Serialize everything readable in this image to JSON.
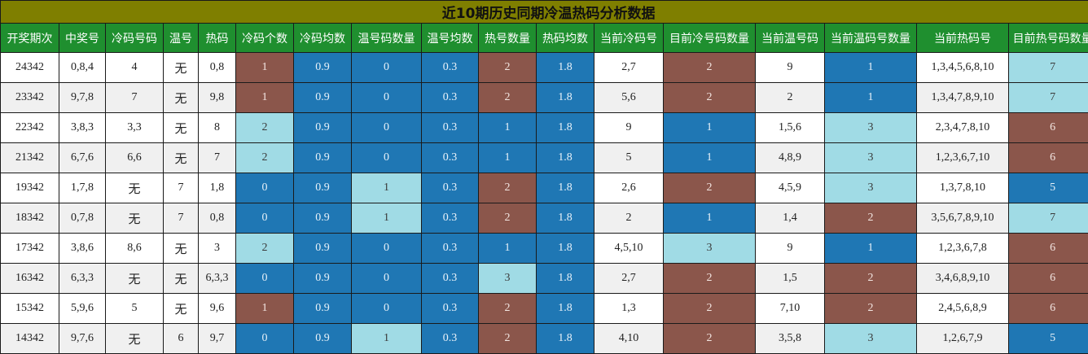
{
  "title": "近10期历史同期冷温热码分析数据",
  "colors": {
    "title_bg": "#7f7f00",
    "header_bg": "#1f8f2f",
    "brown": "#8b564b",
    "blue": "#1f77b4",
    "light": "#a0dbe5"
  },
  "headers": [
    "开奖期次",
    "中奖号",
    "冷码号码",
    "温号",
    "热码",
    "冷码个数",
    "冷码均数",
    "温号码数量",
    "温号均数",
    "热号数量",
    "热码均数",
    "当前冷码号",
    "目前冷号码数量",
    "当前温号码",
    "当前温码号数量",
    "当前热码号",
    "目前热号码数量"
  ],
  "rows": [
    {
      "cells": [
        "24342",
        "0,8,4",
        "4",
        "无",
        "0,8",
        "1",
        "0.9",
        "0",
        "0.3",
        "2",
        "1.8",
        "2,7",
        "2",
        "9",
        "1",
        "1,3,4,5,6,8,10",
        "7"
      ],
      "colors": [
        "",
        "",
        "",
        "",
        "",
        "brown",
        "blue",
        "blue",
        "blue",
        "brown",
        "blue",
        "",
        "brown",
        "",
        "blue",
        "",
        "light"
      ]
    },
    {
      "cells": [
        "23342",
        "9,7,8",
        "7",
        "无",
        "9,8",
        "1",
        "0.9",
        "0",
        "0.3",
        "2",
        "1.8",
        "5,6",
        "2",
        "2",
        "1",
        "1,3,4,7,8,9,10",
        "7"
      ],
      "colors": [
        "",
        "",
        "",
        "",
        "",
        "brown",
        "blue",
        "blue",
        "blue",
        "brown",
        "blue",
        "",
        "brown",
        "",
        "blue",
        "",
        "light"
      ]
    },
    {
      "cells": [
        "22342",
        "3,8,3",
        "3,3",
        "无",
        "8",
        "2",
        "0.9",
        "0",
        "0.3",
        "1",
        "1.8",
        "9",
        "1",
        "1,5,6",
        "3",
        "2,3,4,7,8,10",
        "6"
      ],
      "colors": [
        "",
        "",
        "",
        "",
        "",
        "light",
        "blue",
        "blue",
        "blue",
        "blue",
        "blue",
        "",
        "blue",
        "",
        "light",
        "",
        "brown"
      ]
    },
    {
      "cells": [
        "21342",
        "6,7,6",
        "6,6",
        "无",
        "7",
        "2",
        "0.9",
        "0",
        "0.3",
        "1",
        "1.8",
        "5",
        "1",
        "4,8,9",
        "3",
        "1,2,3,6,7,10",
        "6"
      ],
      "colors": [
        "",
        "",
        "",
        "",
        "",
        "light",
        "blue",
        "blue",
        "blue",
        "blue",
        "blue",
        "",
        "blue",
        "",
        "light",
        "",
        "brown"
      ]
    },
    {
      "cells": [
        "19342",
        "1,7,8",
        "无",
        "7",
        "1,8",
        "0",
        "0.9",
        "1",
        "0.3",
        "2",
        "1.8",
        "2,6",
        "2",
        "4,5,9",
        "3",
        "1,3,7,8,10",
        "5"
      ],
      "colors": [
        "",
        "",
        "",
        "",
        "",
        "blue",
        "blue",
        "light",
        "blue",
        "brown",
        "blue",
        "",
        "brown",
        "",
        "light",
        "",
        "blue"
      ]
    },
    {
      "cells": [
        "18342",
        "0,7,8",
        "无",
        "7",
        "0,8",
        "0",
        "0.9",
        "1",
        "0.3",
        "2",
        "1.8",
        "2",
        "1",
        "1,4",
        "2",
        "3,5,6,7,8,9,10",
        "7"
      ],
      "colors": [
        "",
        "",
        "",
        "",
        "",
        "blue",
        "blue",
        "light",
        "blue",
        "brown",
        "blue",
        "",
        "blue",
        "",
        "brown",
        "",
        "light"
      ]
    },
    {
      "cells": [
        "17342",
        "3,8,6",
        "8,6",
        "无",
        "3",
        "2",
        "0.9",
        "0",
        "0.3",
        "1",
        "1.8",
        "4,5,10",
        "3",
        "9",
        "1",
        "1,2,3,6,7,8",
        "6"
      ],
      "colors": [
        "",
        "",
        "",
        "",
        "",
        "light",
        "blue",
        "blue",
        "blue",
        "blue",
        "blue",
        "",
        "light",
        "",
        "blue",
        "",
        "brown"
      ]
    },
    {
      "cells": [
        "16342",
        "6,3,3",
        "无",
        "无",
        "6,3,3",
        "0",
        "0.9",
        "0",
        "0.3",
        "3",
        "1.8",
        "2,7",
        "2",
        "1,5",
        "2",
        "3,4,6,8,9,10",
        "6"
      ],
      "colors": [
        "",
        "",
        "",
        "",
        "",
        "blue",
        "blue",
        "blue",
        "blue",
        "light",
        "blue",
        "",
        "brown",
        "",
        "brown",
        "",
        "brown"
      ]
    },
    {
      "cells": [
        "15342",
        "5,9,6",
        "5",
        "无",
        "9,6",
        "1",
        "0.9",
        "0",
        "0.3",
        "2",
        "1.8",
        "1,3",
        "2",
        "7,10",
        "2",
        "2,4,5,6,8,9",
        "6"
      ],
      "colors": [
        "",
        "",
        "",
        "",
        "",
        "brown",
        "blue",
        "blue",
        "blue",
        "brown",
        "blue",
        "",
        "brown",
        "",
        "brown",
        "",
        "brown"
      ]
    },
    {
      "cells": [
        "14342",
        "9,7,6",
        "无",
        "6",
        "9,7",
        "0",
        "0.9",
        "1",
        "0.3",
        "2",
        "1.8",
        "4,10",
        "2",
        "3,5,8",
        "3",
        "1,2,6,7,9",
        "5"
      ],
      "colors": [
        "",
        "",
        "",
        "",
        "",
        "blue",
        "blue",
        "light",
        "blue",
        "brown",
        "blue",
        "",
        "brown",
        "",
        "light",
        "",
        "blue"
      ]
    }
  ]
}
